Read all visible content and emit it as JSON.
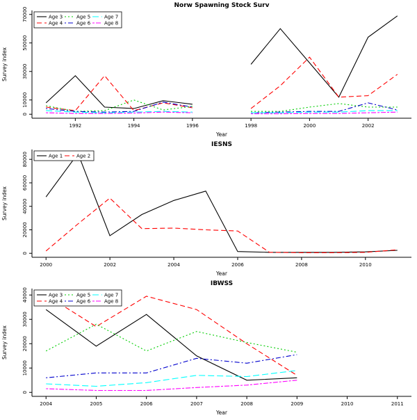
{
  "page": {
    "background": "#ffffff"
  },
  "chart_data": {
    "note": "three stacked base-R style line charts, see charts[]"
  },
  "charts": [
    {
      "id": "norw-spawning",
      "type": "line",
      "title": "Norw Spawning Stock Surv",
      "xlabel": "Year",
      "ylabel": "Survey index",
      "xlim": [
        1991,
        2003
      ],
      "ylim": [
        0,
        70000
      ],
      "xticks": [
        1992,
        1994,
        1996,
        1998,
        2000,
        2002
      ],
      "yticks": [
        0,
        10000,
        30000,
        50000,
        70000
      ],
      "legend_rows": 2,
      "x": [
        1991,
        1992,
        1993,
        1994,
        1995,
        1996,
        1997,
        1998,
        1999,
        2000,
        2001,
        2002,
        2003
      ],
      "series": [
        {
          "name": "Age 3",
          "color": "#000000",
          "linetype": "solid",
          "y": [
            8000,
            27000,
            5000,
            4000,
            9500,
            7000,
            null,
            35000,
            60000,
            36000,
            12000,
            54000,
            69000
          ]
        },
        {
          "name": "Age 4",
          "color": "#ff0000",
          "linetype": "dashed",
          "y": [
            5000,
            2500,
            27000,
            2500,
            8000,
            4500,
            null,
            4000,
            20000,
            40000,
            12000,
            13000,
            28000
          ]
        },
        {
          "name": "Age 5",
          "color": "#00cd00",
          "linetype": "dotted",
          "y": [
            6000,
            2000,
            2500,
            10000,
            3000,
            5500,
            null,
            2000,
            2000,
            5000,
            7500,
            5000,
            5000
          ]
        },
        {
          "name": "Age 6",
          "color": "#0000cd",
          "linetype": "dotdash",
          "y": [
            4000,
            2000,
            1500,
            2000,
            8500,
            5000,
            null,
            1000,
            1500,
            2000,
            2000,
            8000,
            3000
          ]
        },
        {
          "name": "Age 7",
          "color": "#00ffff",
          "linetype": "longdash",
          "y": [
            2500,
            1500,
            1000,
            1500,
            2000,
            1500,
            null,
            1000,
            1000,
            1500,
            1500,
            2500,
            2500
          ]
        },
        {
          "name": "Age 8",
          "color": "#ff00ff",
          "linetype": "twodash",
          "y": [
            1000,
            500,
            500,
            800,
            1500,
            1000,
            null,
            300,
            300,
            500,
            500,
            1000,
            1500
          ]
        }
      ]
    },
    {
      "id": "iesns",
      "type": "line",
      "title": "IESNS",
      "xlabel": "Year",
      "ylabel": "Survey index",
      "xlim": [
        2000,
        2011
      ],
      "ylim": [
        0,
        85000
      ],
      "xticks": [
        2000,
        2002,
        2004,
        2006,
        2008,
        2010
      ],
      "yticks": [
        0,
        20000,
        40000,
        60000,
        80000
      ],
      "legend_rows": 1,
      "x": [
        2000,
        2001,
        2002,
        2003,
        2004,
        2005,
        2006,
        2007,
        2008,
        2009,
        2010,
        2011
      ],
      "series": [
        {
          "name": "Age 1",
          "color": "#000000",
          "linetype": "solid",
          "y": [
            48000,
            85000,
            15000,
            33000,
            45000,
            53000,
            1500,
            800,
            800,
            800,
            1200,
            2500
          ]
        },
        {
          "name": "Age 2",
          "color": "#ff0000",
          "linetype": "dashed",
          "y": [
            2000,
            25000,
            47000,
            21000,
            21500,
            20000,
            19000,
            800,
            500,
            500,
            800,
            3000
          ]
        }
      ]
    },
    {
      "id": "ibwss",
      "type": "line",
      "title": "IBWSS",
      "xlabel": "Year",
      "ylabel": "Survey index",
      "xlim": [
        2004,
        2011
      ],
      "ylim": [
        0,
        41000
      ],
      "xticks": [
        2004,
        2005,
        2006,
        2007,
        2008,
        2009,
        2010,
        2011
      ],
      "yticks": [
        0,
        10000,
        20000,
        30000,
        40000
      ],
      "legend_rows": 2,
      "x": [
        2004,
        2005,
        2006,
        2007,
        2008,
        2009
      ],
      "series": [
        {
          "name": "Age 3",
          "color": "#000000",
          "linetype": "solid",
          "y": [
            34000,
            19000,
            32000,
            15000,
            5000,
            6000
          ]
        },
        {
          "name": "Age 4",
          "color": "#ff0000",
          "linetype": "dashed",
          "y": [
            40000,
            27000,
            39500,
            34000,
            20000,
            7000
          ]
        },
        {
          "name": "Age 5",
          "color": "#00cd00",
          "linetype": "dotted",
          "y": [
            17000,
            28000,
            17000,
            25000,
            20500,
            16500
          ]
        },
        {
          "name": "Age 6",
          "color": "#0000cd",
          "linetype": "dotdash",
          "y": [
            6000,
            8000,
            8000,
            14000,
            12000,
            15500
          ]
        },
        {
          "name": "Age 7",
          "color": "#00ffff",
          "linetype": "longdash",
          "y": [
            3500,
            2500,
            4000,
            7000,
            6500,
            9000
          ]
        },
        {
          "name": "Age 8",
          "color": "#ff00ff",
          "linetype": "twodash",
          "y": [
            1500,
            800,
            800,
            2000,
            3000,
            5000
          ]
        }
      ]
    }
  ]
}
